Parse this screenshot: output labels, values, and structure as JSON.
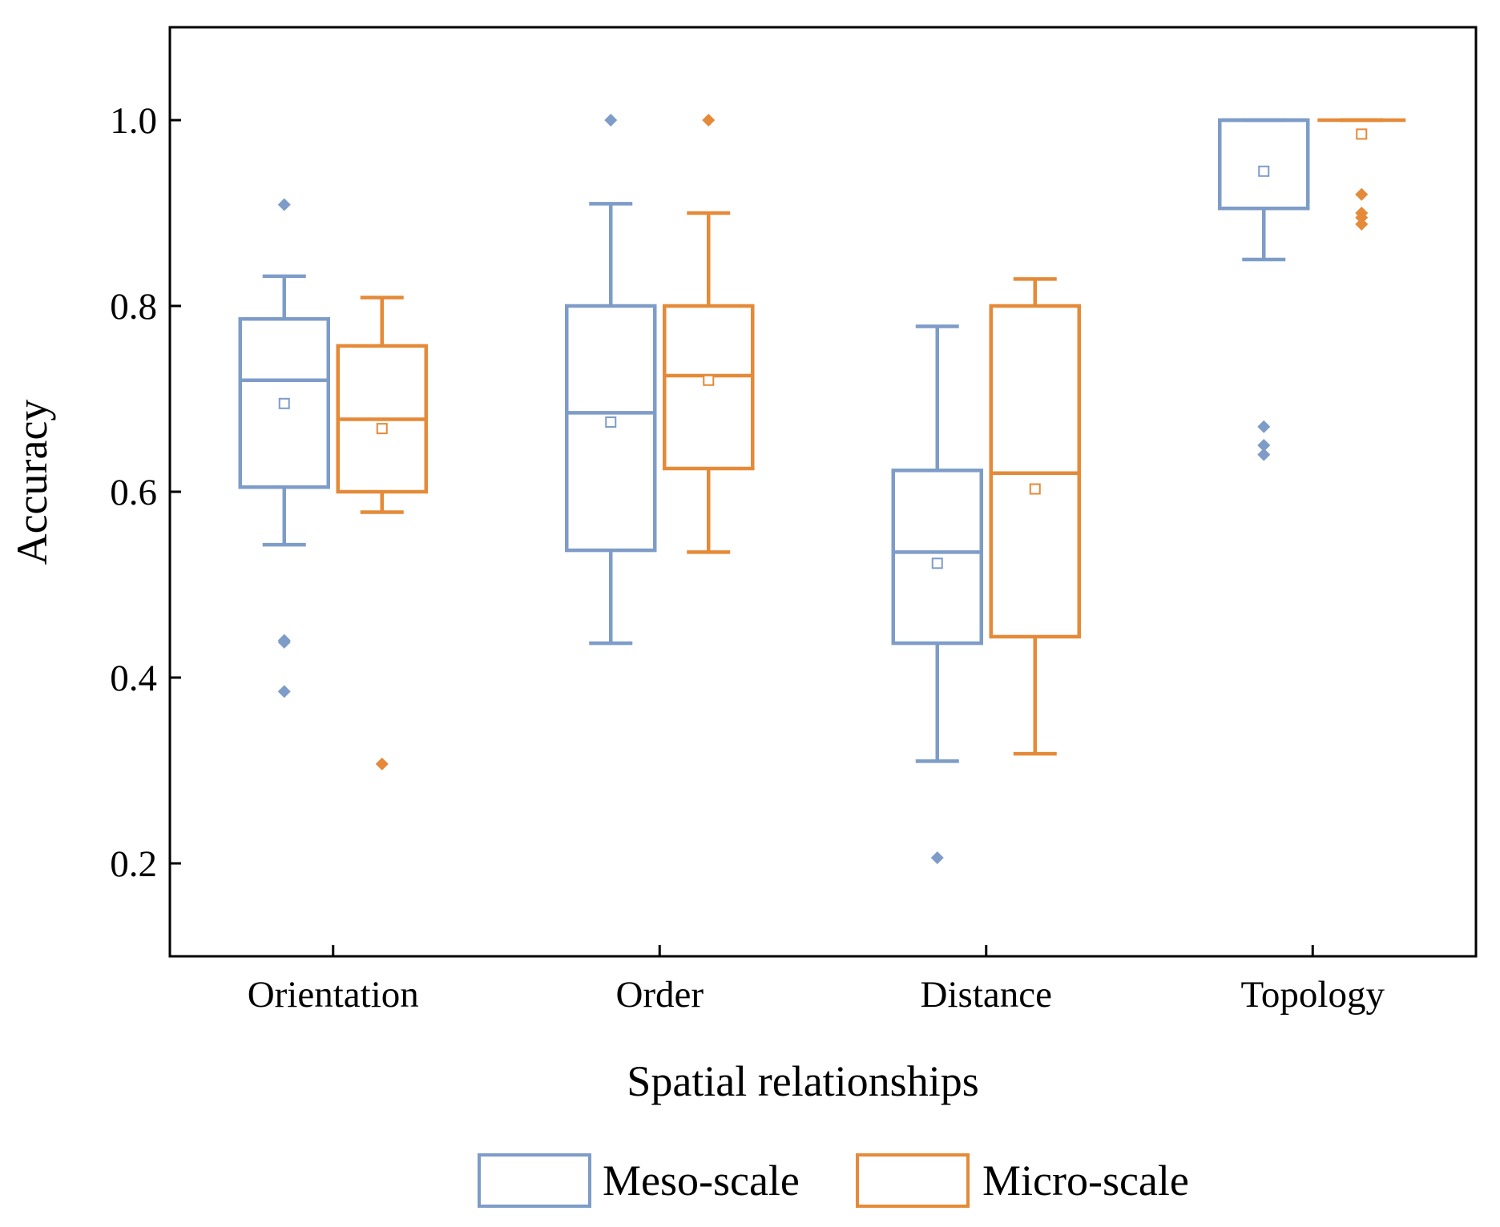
{
  "chart_data": {
    "type": "box",
    "xlabel": "Spatial relationships",
    "ylabel": "Accuracy",
    "ylim": [
      0.1,
      1.1
    ],
    "yticks": [
      0.2,
      0.4,
      0.6,
      0.8,
      1.0
    ],
    "ytick_labels": [
      "0.2",
      "0.4",
      "0.6",
      "0.8",
      "1.0"
    ],
    "categories": [
      "Orientation",
      "Order",
      "Distance",
      "Topology"
    ],
    "grid": false,
    "legend_position": "bottom-center",
    "series": [
      {
        "name": "Meso-scale",
        "color": "#7e9cc8",
        "boxes": [
          {
            "category": "Orientation",
            "whisker_low": 0.543,
            "q1": 0.605,
            "median": 0.72,
            "q3": 0.786,
            "whisker_high": 0.832,
            "mean": 0.695,
            "outliers": [
              0.909,
              0.44,
              0.438,
              0.385
            ]
          },
          {
            "category": "Order",
            "whisker_low": 0.437,
            "q1": 0.537,
            "median": 0.685,
            "q3": 0.8,
            "whisker_high": 0.91,
            "mean": 0.675,
            "outliers": [
              1.0
            ]
          },
          {
            "category": "Distance",
            "whisker_low": 0.31,
            "q1": 0.437,
            "median": 0.535,
            "q3": 0.623,
            "whisker_high": 0.778,
            "mean": 0.523,
            "outliers": [
              0.206
            ]
          },
          {
            "category": "Topology",
            "whisker_low": 0.85,
            "q1": 0.905,
            "median": 1.0,
            "q3": 1.0,
            "whisker_high": 1.0,
            "mean": 0.945,
            "outliers": [
              0.67,
              0.65,
              0.64
            ]
          }
        ]
      },
      {
        "name": "Micro-scale",
        "color": "#e58a38",
        "boxes": [
          {
            "category": "Orientation",
            "whisker_low": 0.578,
            "q1": 0.6,
            "median": 0.678,
            "q3": 0.757,
            "whisker_high": 0.809,
            "mean": 0.668,
            "outliers": [
              0.307
            ]
          },
          {
            "category": "Order",
            "whisker_low": 0.535,
            "q1": 0.625,
            "median": 0.725,
            "q3": 0.8,
            "whisker_high": 0.9,
            "mean": 0.72,
            "outliers": [
              1.0
            ]
          },
          {
            "category": "Distance",
            "whisker_low": 0.318,
            "q1": 0.444,
            "median": 0.62,
            "q3": 0.8,
            "whisker_high": 0.829,
            "mean": 0.603,
            "outliers": []
          },
          {
            "category": "Topology",
            "whisker_low": 1.0,
            "q1": 1.0,
            "median": 1.0,
            "q3": 1.0,
            "whisker_high": 1.0,
            "mean": 0.985,
            "outliers": [
              0.92,
              0.9,
              0.895,
              0.888
            ]
          }
        ]
      }
    ]
  }
}
